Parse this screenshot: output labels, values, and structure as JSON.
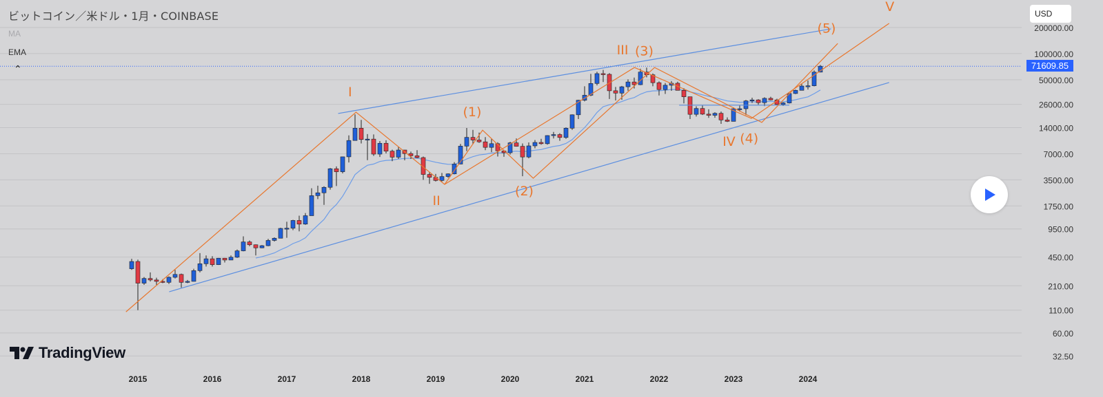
{
  "header": {
    "title": "ビットコイン／米ドル・1月・COINBASE",
    "indicators": [
      "MA",
      "EMA"
    ],
    "collapse_icon": "chevron-up-icon",
    "currency": "USD"
  },
  "price_tag": "71609.85",
  "brand": {
    "name": "TradingView",
    "icon": "tradingview-logo-icon"
  },
  "play_button": {
    "icon": "play-icon"
  },
  "colors": {
    "background": "#d5d5d7",
    "up": "#1f5fd8",
    "down": "#e03a44",
    "wave": "#e8772e",
    "trend": "#5b8ee0",
    "ema": "#6d9de8",
    "accent": "#2962ff"
  },
  "chart_data": {
    "type": "candlestick",
    "title": "ビットコイン／米ドル・1月・COINBASE",
    "scale": "log",
    "ylim": [
      25,
      260000
    ],
    "y_ticks": [
      200000,
      100000,
      50000,
      26000,
      14000,
      7000,
      3500,
      1750,
      950,
      450,
      210,
      110,
      60,
      32.5
    ],
    "y_tick_labels": [
      "200000.00",
      "100000.00",
      "50000.00",
      "26000.00",
      "14000.00",
      "7000.00",
      "3500.00",
      "1750.00",
      "950.00",
      "450.00",
      "210.00",
      "110.00",
      "60.00",
      "32.50"
    ],
    "x_ticks": [
      "2015",
      "2016",
      "2017",
      "2018",
      "2019",
      "2020",
      "2021",
      "2022",
      "2023",
      "2024"
    ],
    "start_month": "2014-12",
    "ohlc": [
      [
        330,
        430,
        320,
        400
      ],
      [
        400,
        420,
        110,
        225
      ],
      [
        225,
        265,
        215,
        255
      ],
      [
        255,
        300,
        235,
        245
      ],
      [
        245,
        260,
        215,
        236
      ],
      [
        236,
        250,
        225,
        230
      ],
      [
        230,
        270,
        220,
        263
      ],
      [
        263,
        320,
        255,
        284
      ],
      [
        284,
        290,
        200,
        230
      ],
      [
        230,
        245,
        225,
        236
      ],
      [
        236,
        330,
        235,
        314
      ],
      [
        314,
        500,
        300,
        377
      ],
      [
        377,
        470,
        350,
        430
      ],
      [
        430,
        460,
        350,
        368
      ],
      [
        368,
        440,
        365,
        437
      ],
      [
        437,
        440,
        390,
        416
      ],
      [
        416,
        470,
        415,
        448
      ],
      [
        448,
        550,
        440,
        531
      ],
      [
        531,
        780,
        525,
        673
      ],
      [
        673,
        700,
        600,
        624
      ],
      [
        624,
        630,
        470,
        575
      ],
      [
        575,
        620,
        570,
        609
      ],
      [
        609,
        730,
        600,
        700
      ],
      [
        700,
        760,
        680,
        742
      ],
      [
        742,
        980,
        740,
        963
      ],
      [
        963,
        1150,
        750,
        970
      ],
      [
        970,
        1210,
        920,
        1190
      ],
      [
        1190,
        1350,
        890,
        1080
      ],
      [
        1080,
        1450,
        1060,
        1350
      ],
      [
        1350,
        2800,
        1350,
        2300
      ],
      [
        2300,
        3000,
        2100,
        2480
      ],
      [
        2480,
        2950,
        1800,
        2870
      ],
      [
        2870,
        4800,
        2700,
        4700
      ],
      [
        4700,
        5000,
        2970,
        4340
      ],
      [
        4340,
        6470,
        4150,
        6450
      ],
      [
        6450,
        11400,
        5550,
        9950
      ],
      [
        9950,
        19890,
        9950,
        13800
      ],
      [
        13800,
        17200,
        9200,
        10220
      ],
      [
        10220,
        11800,
        5900,
        10330
      ],
      [
        10330,
        11700,
        6600,
        6930
      ],
      [
        6930,
        9800,
        6430,
        9240
      ],
      [
        9240,
        10000,
        7050,
        7500
      ],
      [
        7500,
        7800,
        5750,
        6390
      ],
      [
        6390,
        8500,
        6100,
        7730
      ],
      [
        7730,
        7750,
        5880,
        7030
      ],
      [
        7030,
        7400,
        6100,
        6630
      ],
      [
        6630,
        7700,
        6200,
        6320
      ],
      [
        6320,
        6500,
        3500,
        4040
      ],
      [
        4040,
        4300,
        3150,
        3740
      ],
      [
        3740,
        4100,
        3350,
        3440
      ],
      [
        3440,
        4200,
        3350,
        3820
      ],
      [
        3820,
        4150,
        3700,
        4100
      ],
      [
        4100,
        5600,
        4050,
        5320
      ],
      [
        5320,
        9100,
        5300,
        8570
      ],
      [
        8570,
        13880,
        7500,
        10820
      ],
      [
        10820,
        13200,
        9000,
        10080
      ],
      [
        10080,
        12300,
        9350,
        9600
      ],
      [
        9600,
        10900,
        7700,
        8290
      ],
      [
        8290,
        10400,
        7300,
        9150
      ],
      [
        9150,
        9500,
        6500,
        7550
      ],
      [
        7550,
        7750,
        6450,
        7190
      ],
      [
        7190,
        9600,
        6850,
        9350
      ],
      [
        9350,
        10500,
        8450,
        8530
      ],
      [
        8530,
        9200,
        3850,
        6420
      ],
      [
        6420,
        9450,
        6200,
        8630
      ],
      [
        8630,
        10080,
        8100,
        9450
      ],
      [
        9450,
        10400,
        8900,
        9140
      ],
      [
        9140,
        11450,
        8900,
        11350
      ],
      [
        11350,
        12480,
        10500,
        11650
      ],
      [
        11650,
        12080,
        9880,
        10780
      ],
      [
        10780,
        14100,
        10400,
        13800
      ],
      [
        13800,
        19900,
        13200,
        19700
      ],
      [
        19700,
        29300,
        17600,
        28990
      ],
      [
        28990,
        42000,
        28100,
        33100
      ],
      [
        33100,
        58350,
        32300,
        45240
      ],
      [
        45240,
        61780,
        43000,
        58800
      ],
      [
        58800,
        64900,
        47000,
        57700
      ],
      [
        57700,
        59600,
        30000,
        37300
      ],
      [
        37300,
        41300,
        28800,
        35040
      ],
      [
        35040,
        42400,
        29300,
        41460
      ],
      [
        41460,
        50500,
        37300,
        47100
      ],
      [
        47100,
        52900,
        39600,
        43820
      ],
      [
        43820,
        67000,
        43300,
        61300
      ],
      [
        61300,
        69000,
        53250,
        57000
      ],
      [
        57000,
        59100,
        42000,
        46200
      ],
      [
        46200,
        47900,
        32900,
        38480
      ],
      [
        38480,
        45800,
        34300,
        43200
      ],
      [
        43200,
        48200,
        37200,
        45540
      ],
      [
        45540,
        47400,
        37600,
        37700
      ],
      [
        37700,
        40000,
        26700,
        31800
      ],
      [
        31800,
        31900,
        17600,
        19940
      ],
      [
        19940,
        24700,
        18800,
        23300
      ],
      [
        23300,
        25200,
        19600,
        20050
      ],
      [
        20050,
        22800,
        18150,
        19430
      ],
      [
        19430,
        21100,
        18200,
        20490
      ],
      [
        20490,
        21480,
        15480,
        17170
      ],
      [
        17170,
        18400,
        16260,
        16540
      ],
      [
        16540,
        23950,
        16500,
        23130
      ],
      [
        23130,
        25250,
        21400,
        23150
      ],
      [
        23150,
        29200,
        19550,
        28480
      ],
      [
        28480,
        31000,
        26950,
        29250
      ],
      [
        29250,
        29850,
        25800,
        27210
      ],
      [
        27210,
        31400,
        24800,
        30480
      ],
      [
        30480,
        31800,
        28900,
        29230
      ],
      [
        29230,
        30200,
        25300,
        25940
      ],
      [
        25940,
        27500,
        24900,
        26970
      ],
      [
        26970,
        35000,
        26600,
        34660
      ],
      [
        34660,
        38450,
        34150,
        37720
      ],
      [
        37720,
        44700,
        37600,
        42280
      ],
      [
        42280,
        48970,
        38500,
        42580
      ],
      [
        42580,
        64000,
        41880,
        61180
      ],
      [
        61180,
        73800,
        60800,
        71609.85
      ]
    ],
    "ema_period": 20,
    "last_price": 71609.85,
    "wave_lines_primary": [
      [
        2014.84,
        105
      ],
      [
        2017.93,
        21100
      ],
      [
        2019.12,
        3100
      ],
      [
        2021.67,
        69200
      ],
      [
        2023.24,
        17900
      ],
      [
        2025.09,
        223000
      ]
    ],
    "wave_lines_intermediate": [
      [
        2019.12,
        3100
      ],
      [
        2019.63,
        13100
      ],
      [
        2020.31,
        3650
      ],
      [
        2021.94,
        69200
      ],
      [
        2023.38,
        16100
      ],
      [
        2024.4,
        131000
      ]
    ],
    "trend_lines": [
      [
        [
          2017.69,
          20400
        ],
        [
          2024.31,
          193000
        ]
      ],
      [
        [
          2015.42,
          179
        ],
        [
          2025.09,
          46400
        ]
      ],
      [
        [
          2022.27,
          25400
        ],
        [
          2023.75,
          25400
        ]
      ]
    ],
    "wave_labels": [
      {
        "text": "I",
        "at": [
          2017.85,
          36600
        ]
      },
      {
        "text": "II",
        "at": [
          2019.01,
          2040
        ]
      },
      {
        "text": "III",
        "at": [
          2021.51,
          111500
        ]
      },
      {
        "text": "IV",
        "at": [
          2022.94,
          9800
        ]
      },
      {
        "text": "V",
        "at": [
          2025.1,
          352000
        ]
      },
      {
        "text": "(1)",
        "at": [
          2019.49,
          21500
        ]
      },
      {
        "text": "(2)",
        "at": [
          2020.19,
          2630
        ]
      },
      {
        "text": "(3)",
        "at": [
          2021.8,
          108000
        ]
      },
      {
        "text": "(4)",
        "at": [
          2023.21,
          10600
        ]
      },
      {
        "text": "(5)",
        "at": [
          2024.25,
          198000
        ]
      }
    ]
  }
}
